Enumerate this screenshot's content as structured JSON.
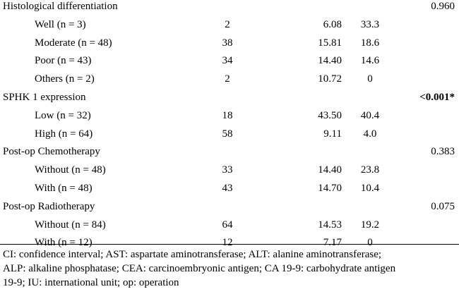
{
  "table": {
    "rows": [
      {
        "type": "head",
        "label": "Histological differentiation",
        "p": "0.960",
        "p_bold": false
      },
      {
        "type": "sub",
        "label": "Well (n = 3)",
        "n": "2",
        "median": "6.08",
        "rate": "33.3"
      },
      {
        "type": "sub",
        "label": "Moderate (n = 48)",
        "n": "38",
        "median": "15.81",
        "rate": "18.6"
      },
      {
        "type": "sub",
        "label": "Poor (n = 43)",
        "n": "34",
        "median": "14.40",
        "rate": "14.6"
      },
      {
        "type": "sub",
        "label": "Others (n = 2)",
        "n": "2",
        "median": "10.72",
        "rate": "0"
      },
      {
        "type": "head",
        "label": "SPHK 1 expression",
        "p": "<0.001*",
        "p_bold": true
      },
      {
        "type": "sub",
        "label": "Low (n = 32)",
        "n": "18",
        "median": "43.50",
        "rate": "40.4"
      },
      {
        "type": "sub",
        "label": "High (n = 64)",
        "n": "58",
        "median": "9.11",
        "rate": "4.0"
      },
      {
        "type": "head",
        "label": "Post-op Chemotherapy",
        "p": "0.383",
        "p_bold": false
      },
      {
        "type": "sub",
        "label": "Without (n = 48)",
        "n": "33",
        "median": "14.40",
        "rate": "23.8"
      },
      {
        "type": "sub",
        "label": "With (n = 48)",
        "n": "43",
        "median": "14.70",
        "rate": "10.4"
      },
      {
        "type": "head",
        "label": "Post-op Radiotherapy",
        "p": "0.075",
        "p_bold": false
      },
      {
        "type": "sub",
        "label": "Without (n = 84)",
        "n": "64",
        "median": "14.53",
        "rate": "19.2"
      },
      {
        "type": "sub",
        "label": "With (n = 12)",
        "n": "12",
        "median": "7.17",
        "rate": "0"
      }
    ]
  },
  "footnote": {
    "lines": [
      "CI: confidence interval; AST: aspartate aminotransferase; ALT: alanine aminotransferase;",
      "ALP: alkaline phosphatase; CEA: carcinoembryonic antigen; CA 19-9: carbohydrate antigen",
      "19-9; IU: international unit; op: operation"
    ]
  }
}
